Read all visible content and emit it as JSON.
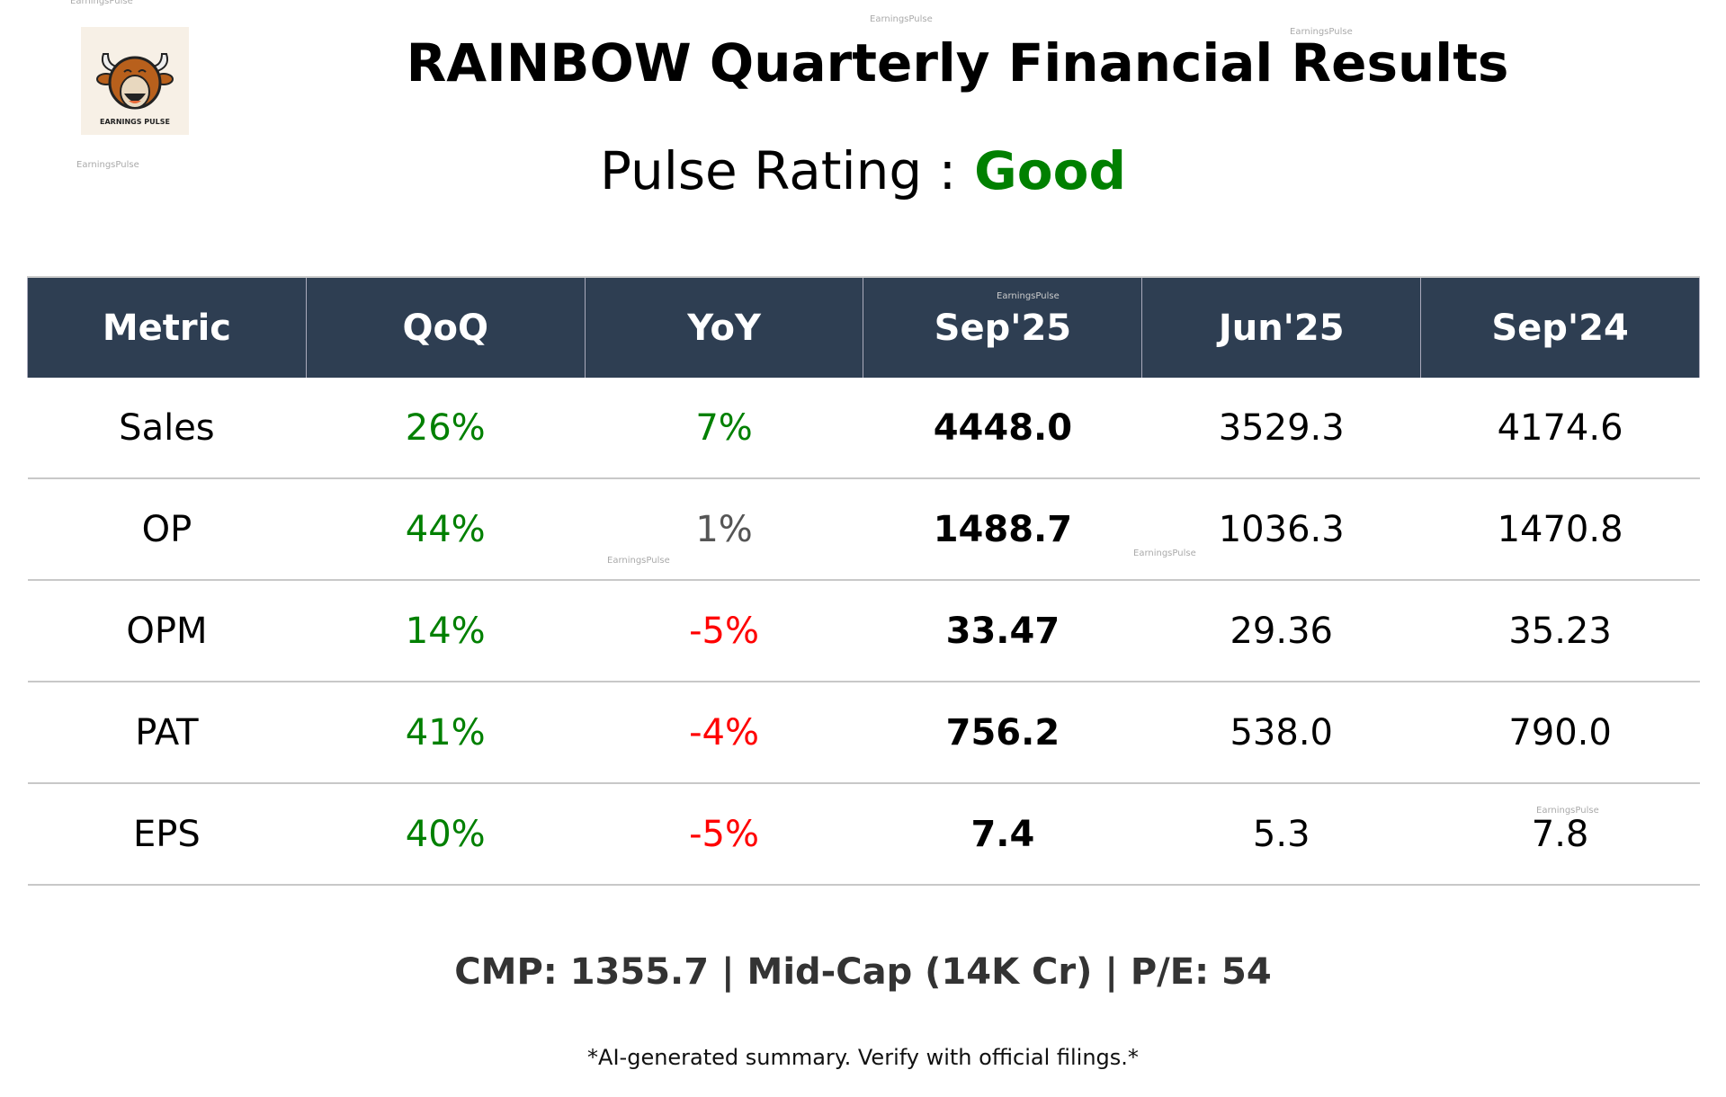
{
  "watermark": "EarningsPulse",
  "logo_text": "EARNINGS PULSE",
  "title": "RAINBOW Quarterly Financial Results",
  "rating": {
    "label": "Pulse Rating :",
    "value": "Good",
    "color": "#008000"
  },
  "table": {
    "headers": [
      "Metric",
      "QoQ",
      "YoY",
      "Sep'25",
      "Jun'25",
      "Sep'24"
    ],
    "rows": [
      {
        "metric": "Sales",
        "qoq": "26%",
        "yoy": "7%",
        "cur": "4448.0",
        "prev": "3529.3",
        "yago": "4174.6",
        "qoq_tone": "pos",
        "yoy_tone": "pos"
      },
      {
        "metric": "OP",
        "qoq": "44%",
        "yoy": "1%",
        "cur": "1488.7",
        "prev": "1036.3",
        "yago": "1470.8",
        "qoq_tone": "pos",
        "yoy_tone": "neu"
      },
      {
        "metric": "OPM",
        "qoq": "14%",
        "yoy": "-5%",
        "cur": "33.47",
        "prev": "29.36",
        "yago": "35.23",
        "qoq_tone": "pos",
        "yoy_tone": "neg"
      },
      {
        "metric": "PAT",
        "qoq": "41%",
        "yoy": "-4%",
        "cur": "756.2",
        "prev": "538.0",
        "yago": "790.0",
        "qoq_tone": "pos",
        "yoy_tone": "neg"
      },
      {
        "metric": "EPS",
        "qoq": "40%",
        "yoy": "-5%",
        "cur": "7.4",
        "prev": "5.3",
        "yago": "7.8",
        "qoq_tone": "pos",
        "yoy_tone": "neg"
      }
    ]
  },
  "summary": "CMP: 1355.7 | Mid-Cap (14K Cr) | P/E: 54",
  "disclaimer": "*AI-generated summary. Verify with official filings.*"
}
